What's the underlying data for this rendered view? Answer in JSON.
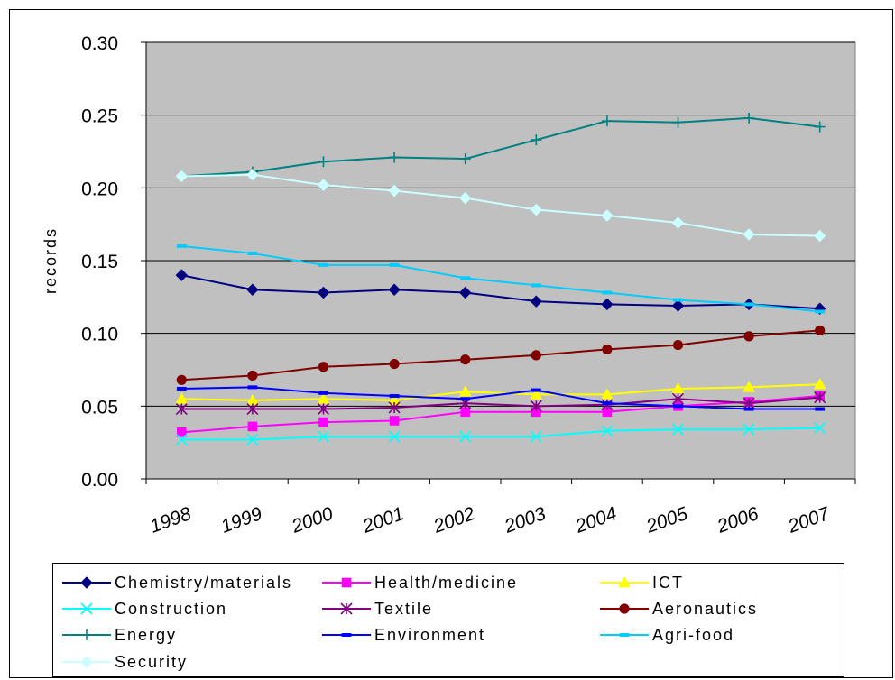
{
  "chart_data": {
    "type": "line",
    "title": "",
    "xlabel": "",
    "ylabel": "records",
    "categories": [
      "1998",
      "1999",
      "2000",
      "2001",
      "2002",
      "2003",
      "2004",
      "2005",
      "2006",
      "2007"
    ],
    "ylim": [
      0.0,
      0.3
    ],
    "yticks": [
      "0.00",
      "0.05",
      "0.10",
      "0.15",
      "0.20",
      "0.25",
      "0.30"
    ],
    "grid": true,
    "plot_background": "#c0c0c0",
    "legend_position": "bottom",
    "series": [
      {
        "name": "Chemistry/materials",
        "color": "#000080",
        "marker": "diamond",
        "values": [
          0.14,
          0.13,
          0.128,
          0.13,
          0.128,
          0.122,
          0.12,
          0.119,
          0.12,
          0.117
        ]
      },
      {
        "name": "Health/medicine",
        "color": "#ff00ff",
        "marker": "square",
        "values": [
          0.032,
          0.036,
          0.039,
          0.04,
          0.046,
          0.046,
          0.046,
          0.05,
          0.053,
          0.057
        ]
      },
      {
        "name": "ICT",
        "color": "#ffff00",
        "marker": "triangle",
        "values": [
          0.055,
          0.054,
          0.055,
          0.054,
          0.06,
          0.058,
          0.058,
          0.062,
          0.063,
          0.065
        ]
      },
      {
        "name": "Construction",
        "color": "#00ffff",
        "marker": "x",
        "values": [
          0.027,
          0.027,
          0.029,
          0.029,
          0.029,
          0.029,
          0.033,
          0.034,
          0.034,
          0.035
        ]
      },
      {
        "name": "Textile",
        "color": "#800080",
        "marker": "asterisk",
        "values": [
          0.048,
          0.048,
          0.048,
          0.049,
          0.052,
          0.05,
          0.051,
          0.055,
          0.052,
          0.056
        ]
      },
      {
        "name": "Aeronautics",
        "color": "#800000",
        "marker": "circle",
        "values": [
          0.068,
          0.071,
          0.077,
          0.079,
          0.082,
          0.085,
          0.089,
          0.092,
          0.098,
          0.102
        ]
      },
      {
        "name": "Energy",
        "color": "#008080",
        "marker": "plus",
        "values": [
          0.208,
          0.211,
          0.218,
          0.221,
          0.22,
          0.233,
          0.246,
          0.245,
          0.248,
          0.242
        ]
      },
      {
        "name": "Environment",
        "color": "#0000ff",
        "marker": "dash",
        "values": [
          0.062,
          0.063,
          0.059,
          0.057,
          0.055,
          0.061,
          0.052,
          0.05,
          0.048,
          0.048
        ]
      },
      {
        "name": "Agri-food",
        "color": "#00ccff",
        "marker": "dash",
        "values": [
          0.16,
          0.155,
          0.147,
          0.147,
          0.138,
          0.133,
          0.128,
          0.123,
          0.12,
          0.115
        ]
      },
      {
        "name": "Security",
        "color": "#ccffff",
        "marker": "diamond",
        "values": [
          0.208,
          0.209,
          0.202,
          0.198,
          0.193,
          0.185,
          0.181,
          0.176,
          0.168,
          0.167
        ]
      }
    ]
  }
}
